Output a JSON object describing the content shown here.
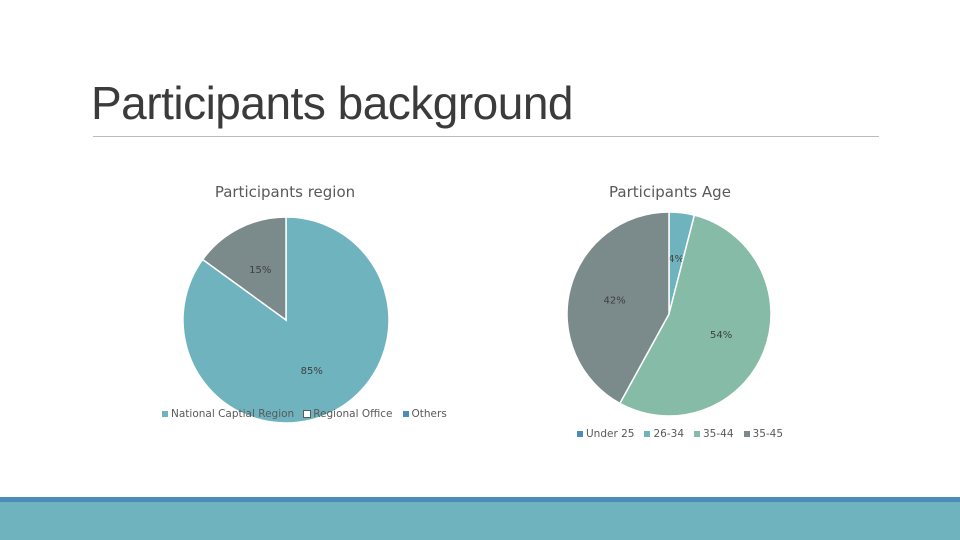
{
  "slide": {
    "title": "Participants background"
  },
  "chart_data": [
    {
      "type": "pie",
      "title": "Participants region",
      "categories": [
        "National Captial Region",
        "Regional Office",
        "Others"
      ],
      "values": [
        85,
        15,
        0
      ],
      "labels": [
        "85%",
        "15%",
        ""
      ],
      "colors": [
        "#6fb3be",
        "#7b8a8b",
        "#4d8cb8"
      ],
      "legend_swatch_colors": [
        "#6fb3be",
        "#ffffff",
        "#4d8cb8"
      ],
      "legend": "bottom"
    },
    {
      "type": "pie",
      "title": "Participants Age",
      "categories": [
        "Under 25",
        "26-34",
        "35-44",
        "35-45"
      ],
      "values": [
        0,
        4,
        54,
        42
      ],
      "labels": [
        "",
        "4%",
        "54%",
        "42%"
      ],
      "colors": [
        "#4d8cb8",
        "#6fb3be",
        "#85bba7",
        "#7b8a8b"
      ],
      "legend_swatch_colors": [
        "#4d8cb8",
        "#6fb3be",
        "#85bba7",
        "#7b8a8b"
      ],
      "legend": "bottom"
    }
  ]
}
